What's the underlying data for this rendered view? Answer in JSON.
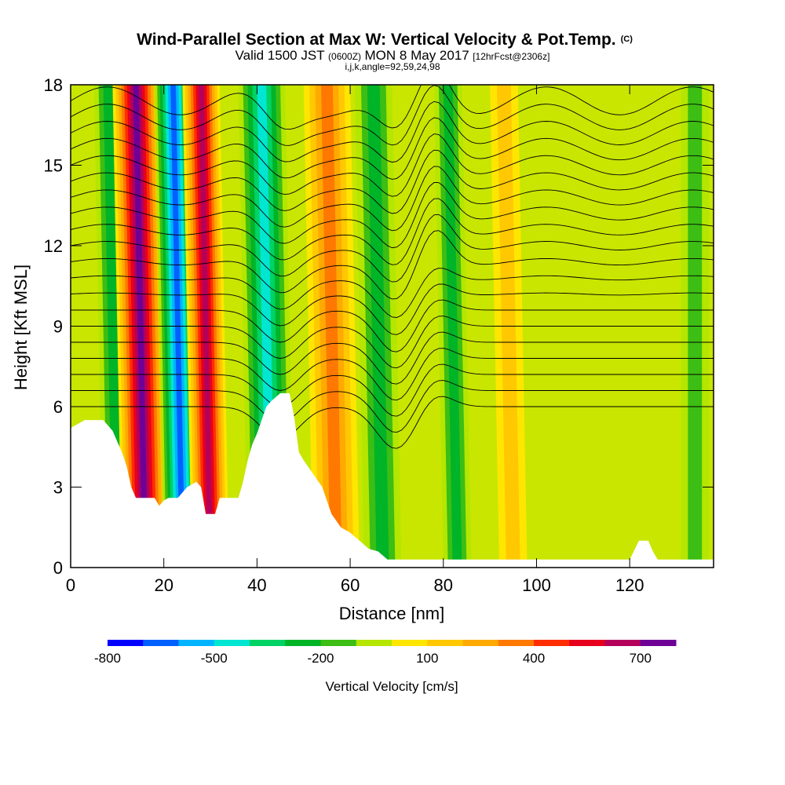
{
  "title": {
    "main": "Wind-Parallel Section at Max W: Vertical Velocity & Pot.Temp.",
    "main_suffix": "(C)",
    "line2_a": "Valid 1500 JST",
    "line2_b": "(0600Z)",
    "line2_c": "MON 8 May 2017",
    "line2_d": "[12hrFcst@2306z]",
    "line3": "i,j,k,angle=92,59,24,98"
  },
  "chart_data": {
    "type": "heatmap",
    "xlabel": "Distance [nm]",
    "ylabel": "Height [Kft MSL]",
    "xlim": [
      0,
      138
    ],
    "ylim": [
      0,
      18
    ],
    "x_ticks": [
      "0",
      "20",
      "40",
      "60",
      "80",
      "100",
      "120"
    ],
    "y_ticks": [
      "0",
      "3",
      "6",
      "9",
      "12",
      "15",
      "18"
    ],
    "colorbar": {
      "label": "Vertical Velocity [cm/s]",
      "tick_labels": [
        "-800",
        "-500",
        "-200",
        "100",
        "400",
        "700"
      ],
      "levels": [
        -800,
        -700,
        -600,
        -500,
        -400,
        -300,
        -200,
        -100,
        0,
        100,
        200,
        300,
        400,
        500,
        600,
        700,
        800
      ],
      "colors": [
        "#0000ff",
        "#0060ff",
        "#00b4ff",
        "#00e6d2",
        "#00d264",
        "#00b428",
        "#3cbe14",
        "#b4e600",
        "#ffe600",
        "#ffc800",
        "#ffaa00",
        "#ff7800",
        "#ff2d00",
        "#e6001e",
        "#b4005a",
        "#6e0096"
      ]
    },
    "vertical_velocity_bands": [
      {
        "x": 10,
        "width": 3,
        "value": -250
      },
      {
        "x": 16,
        "width": 5,
        "value": 750
      },
      {
        "x": 24,
        "width": 4,
        "value": -650
      },
      {
        "x": 30,
        "width": 4,
        "value": 650
      },
      {
        "x": 43,
        "width": 5,
        "value": -450
      },
      {
        "x": 57,
        "width": 5,
        "value": 400
      },
      {
        "x": 67,
        "width": 4,
        "value": -250
      },
      {
        "x": 83,
        "width": 3,
        "value": -250
      },
      {
        "x": 95,
        "width": 3,
        "value": 200
      },
      {
        "x": 134,
        "width": 3,
        "value": -150
      }
    ],
    "theta_contour_count": 20,
    "terrain_profile": [
      [
        0,
        5.2
      ],
      [
        3,
        5.5
      ],
      [
        7,
        5.5
      ],
      [
        9,
        5.1
      ],
      [
        11,
        4.3
      ],
      [
        12,
        3.8
      ],
      [
        13,
        3.0
      ],
      [
        14,
        2.6
      ],
      [
        18,
        2.6
      ],
      [
        19,
        2.3
      ],
      [
        20,
        2.5
      ],
      [
        21,
        2.6
      ],
      [
        23,
        2.6
      ],
      [
        25,
        3.0
      ],
      [
        27,
        3.2
      ],
      [
        28,
        3.0
      ],
      [
        29,
        2.0
      ],
      [
        31,
        2.0
      ],
      [
        32,
        2.6
      ],
      [
        36,
        2.6
      ],
      [
        37,
        3.2
      ],
      [
        38,
        4.0
      ],
      [
        39,
        4.6
      ],
      [
        40,
        5.0
      ],
      [
        41,
        5.5
      ],
      [
        42,
        6.0
      ],
      [
        43,
        6.2
      ],
      [
        45,
        6.5
      ],
      [
        47,
        6.5
      ],
      [
        48,
        5.6
      ],
      [
        49,
        4.3
      ],
      [
        50,
        4.0
      ],
      [
        52,
        3.5
      ],
      [
        54,
        3.0
      ],
      [
        56,
        2.0
      ],
      [
        58,
        1.5
      ],
      [
        60,
        1.3
      ],
      [
        62,
        1.0
      ],
      [
        64,
        0.7
      ],
      [
        66,
        0.6
      ],
      [
        68,
        0.3
      ],
      [
        120,
        0.3
      ],
      [
        122,
        1.0
      ],
      [
        124,
        1.0
      ],
      [
        125,
        0.6
      ],
      [
        126,
        0.3
      ],
      [
        138,
        0.3
      ]
    ]
  }
}
